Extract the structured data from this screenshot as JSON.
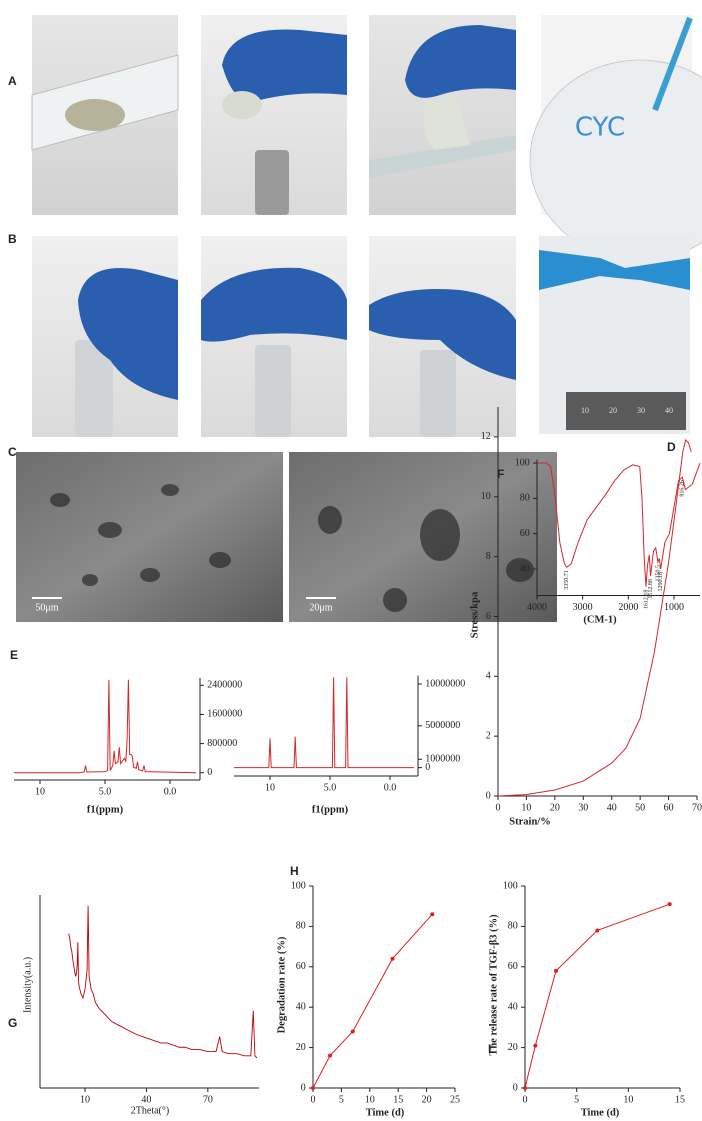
{
  "panel_labels": [
    "A",
    "B",
    "C",
    "D",
    "E",
    "F",
    "G",
    "H",
    "I"
  ],
  "photos": {
    "writing": "CYC",
    "ruler": [
      "10",
      "20",
      "30",
      "40"
    ],
    "scale_bars": [
      "50μm",
      "20μm"
    ]
  },
  "chart_data": [
    {
      "type": "line",
      "xlabel": "(CM-1)",
      "xlim": [
        4000,
        430
      ],
      "ylim": [
        25,
        102
      ],
      "xticks": [
        4000,
        3000,
        2000,
        1000
      ],
      "yticks": [
        40,
        60,
        80,
        100
      ],
      "x": [
        4000,
        3800,
        3700,
        3600,
        3500,
        3400,
        3350.71,
        3250,
        3100,
        2900,
        2700,
        2500,
        2300,
        2100,
        1900,
        1750,
        1700,
        1650,
        1612.18,
        1580,
        1540,
        1512.88,
        1450,
        1400,
        1350.5,
        1320,
        1290.18,
        1200,
        1100,
        1000,
        900,
        816.26,
        750,
        600,
        430
      ],
      "series": [
        {
          "color": "#d62728",
          "values": [
            100,
            100,
            98,
            80,
            55,
            43,
            41,
            43,
            55,
            68,
            75,
            82,
            90,
            96,
            99,
            98,
            80,
            45,
            30,
            42,
            48,
            36,
            50,
            52,
            44,
            46,
            40,
            55,
            60,
            75,
            90,
            92,
            85,
            88,
            100
          ]
        }
      ],
      "annotations": [
        {
          "x": 3350.71,
          "label": "3350.71"
        },
        {
          "x": 1612.18,
          "label": "1612.18"
        },
        {
          "x": 1512.88,
          "label": "1512.88"
        },
        {
          "x": 1350.5,
          "label": "1350.5"
        },
        {
          "x": 1290.18,
          "label": "1290.18"
        },
        {
          "x": 816.26,
          "label": "816.26"
        }
      ]
    },
    {
      "type": "line",
      "xlabel": "f1(ppm)",
      "y_axis_side": "right",
      "xlim": [
        12,
        -2
      ],
      "ylim": [
        -200000,
        2600000
      ],
      "xticks": [
        10,
        {
          "value": 5,
          "label": "5.0"
        },
        {
          "value": 0,
          "label": "0.0"
        }
      ],
      "yticks": [
        0,
        800000,
        1600000,
        2400000
      ],
      "x": [
        12,
        7,
        6.6,
        6.5,
        6.4,
        5,
        4.8,
        4.7,
        4.6,
        4.4,
        4.3,
        4.2,
        4.0,
        3.9,
        3.8,
        3.6,
        3.5,
        3.4,
        3.3,
        3.2,
        3.1,
        3.0,
        2.9,
        2.8,
        2.6,
        2.5,
        2.4,
        2.1,
        2.0,
        1.9,
        -2
      ],
      "series": [
        {
          "color": "#d62728",
          "values": [
            0,
            0,
            20000,
            200000,
            20000,
            30000,
            60000,
            2550000,
            60000,
            200000,
            600000,
            250000,
            300000,
            700000,
            250000,
            350000,
            400000,
            300000,
            900000,
            2550000,
            500000,
            500000,
            450000,
            150000,
            120000,
            300000,
            80000,
            50000,
            200000,
            30000,
            0
          ]
        }
      ]
    },
    {
      "type": "line",
      "xlabel": "f1(ppm)",
      "y_axis_side": "right",
      "xlim": [
        13,
        -2
      ],
      "ylim": [
        -1000000,
        11000000
      ],
      "xticks": [
        10,
        {
          "value": 5,
          "label": "5.0"
        },
        {
          "value": 0,
          "label": "0.0"
        }
      ],
      "yticks": [
        0,
        1000000,
        5000000,
        10000000
      ],
      "x": [
        13,
        10.1,
        10,
        9.9,
        8,
        7.9,
        7.8,
        4.8,
        4.7,
        4.6,
        3.7,
        3.6,
        3.5,
        -2
      ],
      "series": [
        {
          "color": "#d62728",
          "values": [
            0,
            0,
            3500000,
            0,
            0,
            3700000,
            0,
            0,
            10800000,
            0,
            0,
            10800000,
            0,
            0
          ]
        }
      ]
    },
    {
      "type": "line",
      "xlabel": "Strain/%",
      "ylabel": "Stress/kpa",
      "xlim": [
        0,
        70
      ],
      "ylim": [
        0,
        13
      ],
      "xticks": [
        0,
        10,
        20,
        30,
        40,
        50,
        60,
        70
      ],
      "yticks": [
        0,
        2,
        4,
        6,
        8,
        10,
        12
      ],
      "x": [
        0,
        10,
        20,
        30,
        40,
        45,
        50,
        55,
        60,
        63,
        65,
        66,
        67,
        68
      ],
      "series": [
        {
          "color": "#d62728",
          "values": [
            0,
            0.05,
            0.2,
            0.5,
            1.1,
            1.6,
            2.6,
            4.8,
            7.8,
            10,
            11.5,
            11.9,
            11.8,
            11.5
          ]
        }
      ]
    },
    {
      "type": "line",
      "xlabel": "2Theta(°)",
      "ylabel": "Intensity(a.u.)",
      "xlim": [
        -12,
        95
      ],
      "ylim": [
        0,
        90
      ],
      "xticks": [
        10,
        40,
        70
      ],
      "x": [
        2,
        2.5,
        3,
        3.5,
        4,
        4.5,
        5,
        5.5,
        6,
        6.2,
        6.5,
        6.8,
        7.2,
        8,
        9,
        10,
        11,
        11.5,
        12,
        13,
        14,
        15,
        17,
        19,
        21,
        23,
        25,
        27,
        29,
        31,
        33,
        35,
        38,
        41,
        44,
        47,
        50,
        53,
        56,
        59,
        62,
        66,
        70,
        74,
        75.8,
        77,
        80,
        84,
        88,
        91,
        92.2,
        93,
        94
      ],
      "series": [
        {
          "color": "#c00000",
          "values": [
            72,
            70,
            66,
            64,
            60,
            57,
            54,
            52,
            55,
            58,
            68,
            50,
            47,
            44,
            42,
            46,
            55,
            85,
            52,
            46,
            44,
            40,
            37,
            35,
            33,
            31,
            30,
            29,
            28,
            27,
            26,
            25,
            24,
            23,
            22,
            21,
            21,
            20,
            19,
            19,
            18,
            18,
            17,
            17,
            24,
            17,
            16,
            16,
            15,
            15,
            36,
            15,
            14
          ]
        }
      ]
    },
    {
      "type": "line",
      "markers": true,
      "xlabel": "Time (d)",
      "ylabel": "Degradation rate (%)",
      "xlim": [
        0,
        25
      ],
      "ylim": [
        0,
        100
      ],
      "xticks": [
        0,
        5,
        10,
        15,
        20,
        25
      ],
      "yticks": [
        0,
        20,
        40,
        60,
        80,
        100
      ],
      "x": [
        0,
        3,
        7,
        14,
        21
      ],
      "series": [
        {
          "color": "#e0201c",
          "values": [
            0,
            16,
            28,
            64,
            86
          ]
        }
      ]
    },
    {
      "type": "line",
      "markers": true,
      "xlabel": "Time (d)",
      "ylabel": "The release rate of TGF-β3 (%)",
      "xlim": [
        0,
        15
      ],
      "ylim": [
        0,
        100
      ],
      "xticks": [
        0,
        5,
        10,
        15
      ],
      "yticks": [
        0,
        20,
        40,
        60,
        80,
        100
      ],
      "x": [
        0,
        1,
        3,
        7,
        14
      ],
      "series": [
        {
          "color": "#e0201c",
          "values": [
            0,
            21,
            58,
            78,
            91
          ]
        }
      ]
    }
  ]
}
